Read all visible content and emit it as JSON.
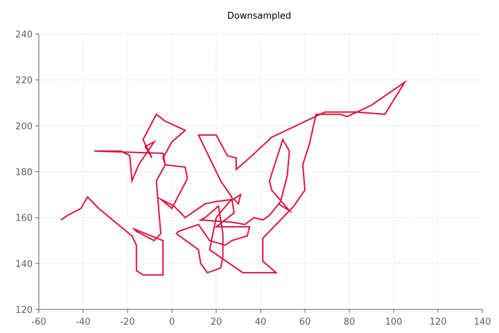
{
  "chart_data": {
    "type": "line",
    "title": "Downsampled",
    "xlabel": "",
    "ylabel": "",
    "xlim": [
      -60,
      140
    ],
    "ylim": [
      120,
      240
    ],
    "xticks": [
      -60,
      -40,
      -20,
      0,
      20,
      40,
      60,
      80,
      100,
      120,
      140
    ],
    "yticks": [
      120,
      140,
      160,
      180,
      200,
      220,
      240
    ],
    "grid": true,
    "legend": "none",
    "series": [
      {
        "color": "#dc143c",
        "x": [
          -50,
          -47,
          -41,
          -38,
          -33,
          -18,
          -16,
          -16,
          -13,
          -4,
          -4,
          -17,
          -16,
          -8,
          -5,
          -7,
          -3,
          -4,
          -35,
          -23,
          -19,
          -18,
          -15,
          -8,
          -12,
          -12,
          -9,
          -13,
          -7,
          -3,
          6,
          0,
          -4,
          -3,
          6,
          7,
          0,
          -5,
          1,
          6,
          15,
          20,
          28,
          30,
          31,
          26,
          20,
          17,
          32,
          47,
          41,
          41,
          50,
          55,
          60,
          59,
          62,
          65,
          76,
          79,
          90,
          102,
          105,
          96,
          83,
          69,
          45,
          35,
          29,
          29,
          25,
          20,
          12,
          22,
          27,
          28,
          20,
          35,
          34,
          27,
          24,
          17,
          12,
          3,
          2,
          12,
          13,
          16,
          22,
          23,
          23,
          21,
          15,
          13,
          27,
          33,
          37,
          41,
          44,
          49,
          52,
          53,
          50,
          44,
          45,
          53,
          48
        ],
        "y": [
          159,
          161,
          164,
          169,
          164,
          152,
          148,
          137,
          135,
          135,
          150,
          155,
          154,
          150,
          153,
          176,
          183,
          188,
          189,
          189,
          187,
          176,
          183,
          193,
          191,
          191,
          186,
          194,
          205,
          202,
          198,
          193,
          186,
          183,
          182,
          177,
          164,
          168,
          165,
          160,
          166,
          167,
          168,
          166,
          170,
          167,
          160,
          146,
          136,
          136,
          141,
          151,
          160,
          165,
          172,
          183,
          192,
          205,
          205,
          204,
          209,
          217,
          219,
          205,
          206,
          206,
          195,
          186,
          181,
          186,
          187,
          196,
          196,
          176,
          169,
          162,
          156,
          156,
          152,
          150,
          148,
          150,
          157,
          154,
          153,
          146,
          140,
          136,
          138,
          143,
          153,
          165,
          160,
          159,
          158,
          157,
          160,
          159,
          161,
          167,
          178,
          189,
          194,
          176,
          172,
          163,
          166
        ]
      }
    ]
  }
}
